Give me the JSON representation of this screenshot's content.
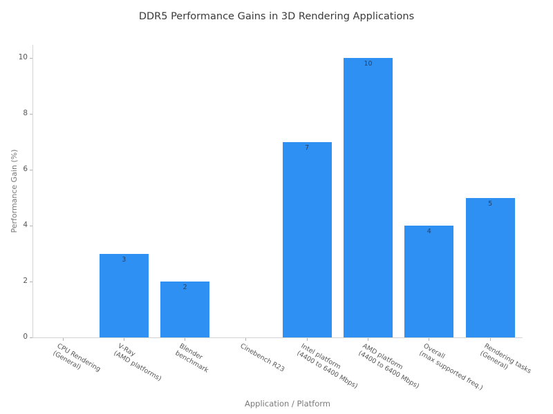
{
  "chart_data": {
    "type": "bar",
    "title": "DDR5 Performance Gains in 3D Rendering Applications",
    "xlabel": "Application / Platform",
    "ylabel": "Performance Gain (%)",
    "categories": [
      "CPU Rendering\n(General)",
      "V-Ray\n(AMD platforms)",
      "Blender\nbenchmark",
      "Cinebench R23",
      "Intel platform\n(4400 to 6400 Mbps)",
      "AMD platform\n(4400 to 6400 Mbps)",
      "Overall\n(max supported freq.)",
      "Rendering tasks\n(General)"
    ],
    "values": [
      0,
      3,
      2,
      0,
      7,
      10,
      4,
      5
    ],
    "value_labels_shown": [
      "3",
      "2",
      "7",
      "10",
      "4",
      "5"
    ],
    "ylim": [
      0,
      10
    ],
    "yticks": [
      0,
      2,
      4,
      6,
      8,
      10
    ],
    "grid": false,
    "legend": "none",
    "bar_color": "#2e90f2",
    "value_label_color": "#2a3f5f",
    "tick_label_color": "#565656",
    "axis_title_color": "#7a7a7a",
    "title_color": "#3a3a3a",
    "spine_color": "#d4d4d4",
    "background_color": "#ffffff"
  }
}
